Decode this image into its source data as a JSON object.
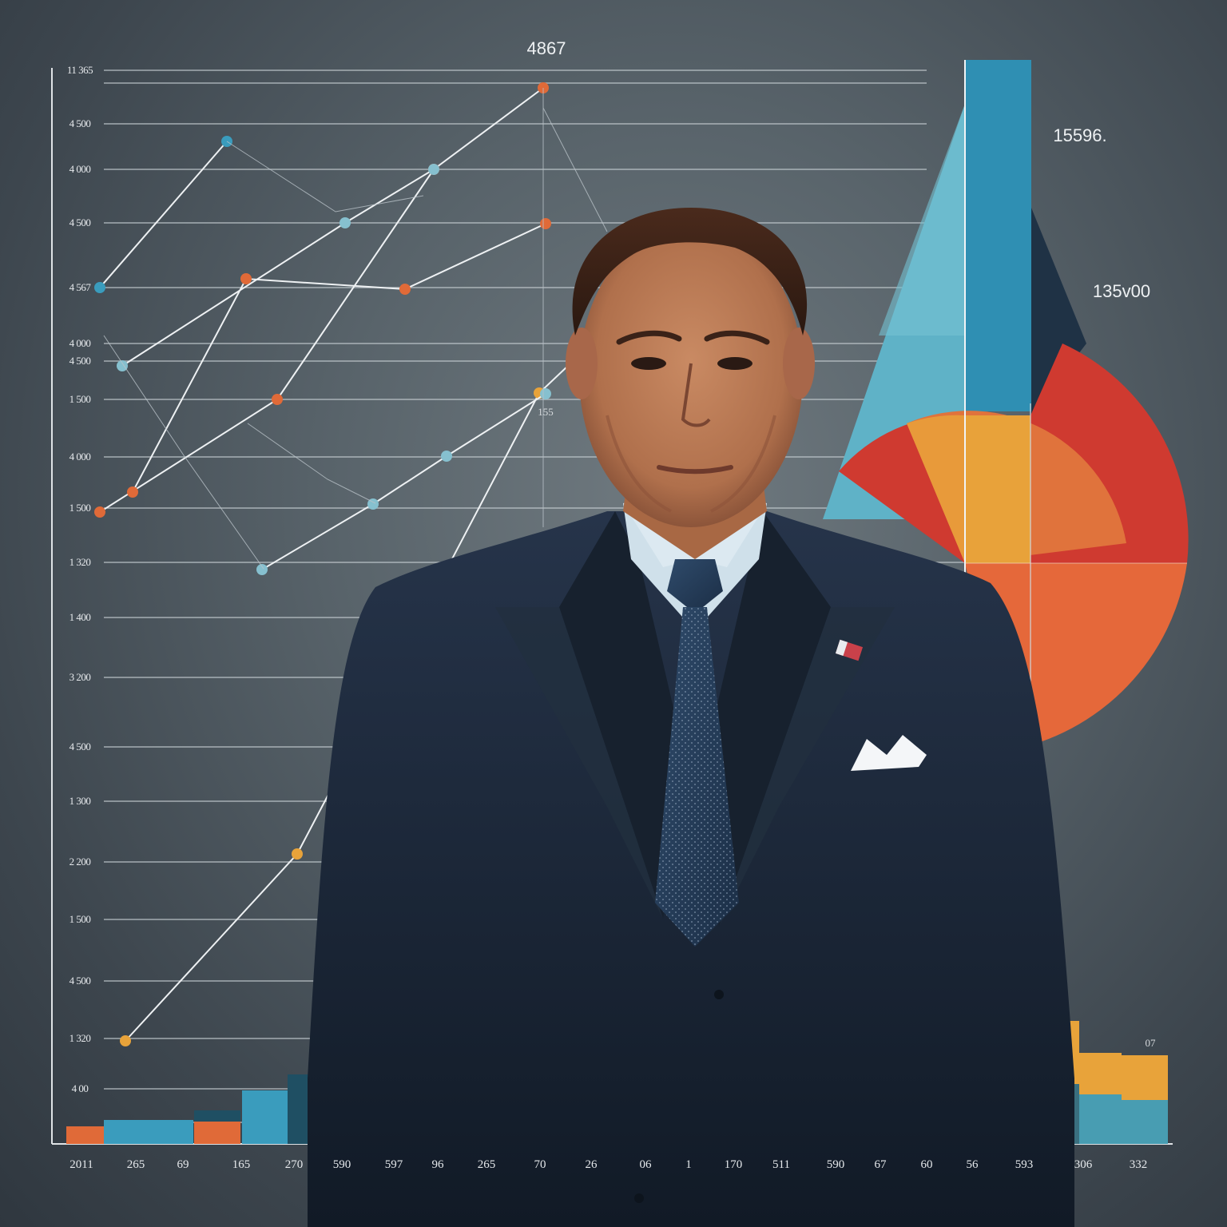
{
  "y_tick_labels": [
    "11 365",
    "4 500",
    "4 000",
    "4 500",
    "4 567",
    "4 000",
    "4 500",
    "1 500",
    "4 000",
    "1 500",
    "1 320",
    "1 400",
    "3 200",
    "4 500",
    "1 300",
    "2 200",
    "1 500",
    "4 500",
    "1 320",
    "4 00"
  ],
  "x_tick_labels": [
    "2011",
    "265",
    "69",
    "165",
    "270",
    "590",
    "597",
    "96",
    "265",
    "70",
    "26",
    "06",
    "1",
    "170",
    "511",
    "590",
    "67",
    "60",
    "56",
    "593",
    "306",
    "332"
  ],
  "callouts": {
    "top_value": "4867",
    "right_upper_value": "15596.",
    "right_middle_value": "135v00",
    "mid_small": "155",
    "bar_end_value": "07"
  },
  "subject": {
    "description_icon": "portrait-figure-icon",
    "pocket_square": "pocket-square-icon",
    "lapel_pin": "flag-pin-icon"
  },
  "colors": {
    "orange": "#e06a38",
    "teal": "#3a9cbd",
    "light_blue": "#86c0cf",
    "dark_teal": "#1f4f63",
    "yellow": "#e8a33a",
    "red": "#cf3a30",
    "navy_suit": "#1e2a3a"
  }
}
